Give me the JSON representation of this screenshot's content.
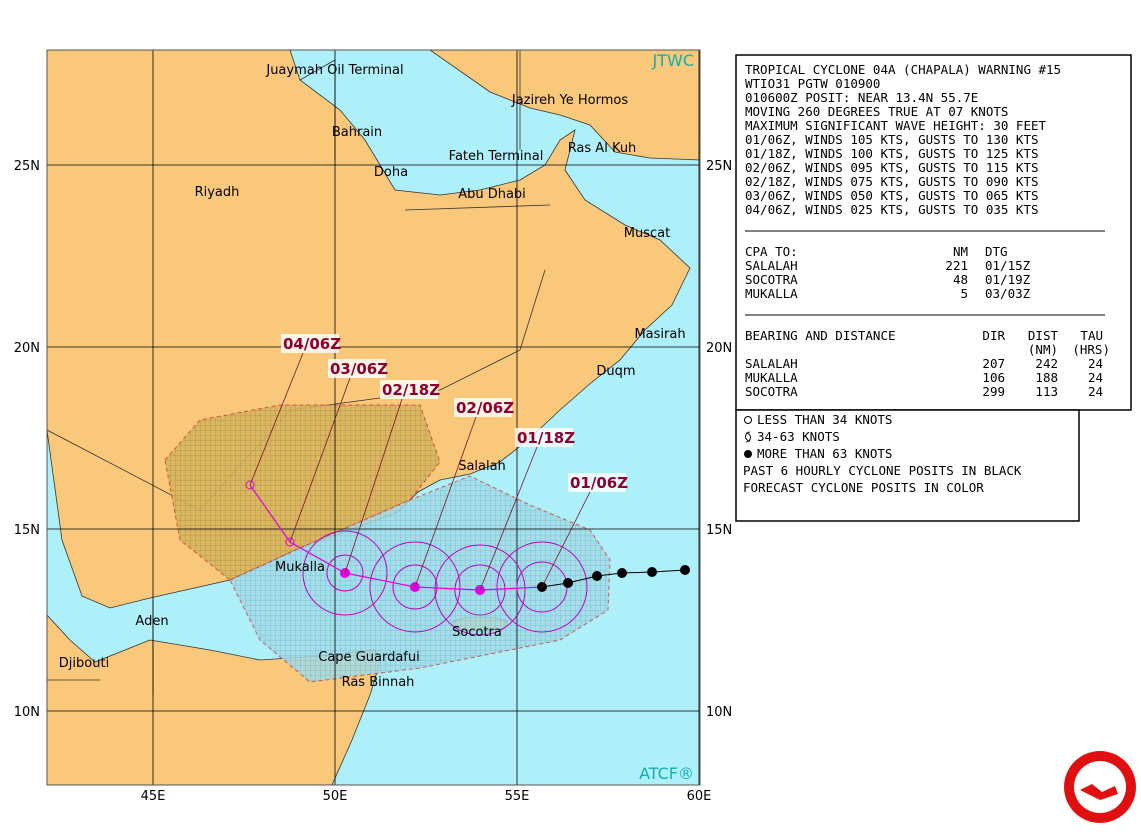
{
  "map": {
    "credit_top": "JTWC",
    "credit_bottom": "ATCF®",
    "lat_labels": [
      "25N",
      "20N",
      "15N",
      "10N"
    ],
    "lon_labels": [
      "45E",
      "50E",
      "55E",
      "60E"
    ],
    "places": [
      "Juaymah Oil Terminal",
      "Jazireh Ye Hormos",
      "Bahrain",
      "Fateh Terminal",
      "Ras Al Kuh",
      "Doha",
      "Abu Dhabi",
      "Riyadh",
      "Muscat",
      "Masirah",
      "Duqm",
      "Salalah",
      "Mukalla",
      "Aden",
      "Socotra",
      "Cape Guardafui",
      "Djibouti",
      "Ras Binnah"
    ],
    "forecast_labels": [
      "04/06Z",
      "03/06Z",
      "02/18Z",
      "02/06Z",
      "01/18Z",
      "01/06Z"
    ]
  },
  "warning": {
    "lines": [
      "TROPICAL CYCLONE 04A (CHAPALA) WARNING #15",
      "WTIO31 PGTW 010900",
      "010600Z POSIT: NEAR 13.4N 55.7E",
      "MOVING 260 DEGREES TRUE AT 07 KNOTS",
      "MAXIMUM SIGNIFICANT WAVE HEIGHT: 30 FEET",
      "01/06Z, WINDS 105 KTS, GUSTS TO 130 KTS",
      "01/18Z, WINDS 100 KTS, GUSTS TO 125 KTS",
      "02/06Z, WINDS 095 KTS, GUSTS TO 115 KTS",
      "02/18Z, WINDS 075 KTS, GUSTS TO 090 KTS",
      "03/06Z, WINDS 050 KTS, GUSTS TO 065 KTS",
      "04/06Z, WINDS 025 KTS, GUSTS TO 035 KTS"
    ],
    "cpa": {
      "header": [
        "CPA TO:",
        "NM",
        "DTG"
      ],
      "rows": [
        [
          "SALALAH",
          "221",
          "01/15Z"
        ],
        [
          "SOCOTRA",
          "48",
          "01/19Z"
        ],
        [
          "MUKALLA",
          "5",
          "03/03Z"
        ]
      ]
    },
    "bearing": {
      "header": [
        "BEARING AND DISTANCE",
        "DIR",
        "DIST",
        "TAU"
      ],
      "subheader": [
        "(NM)",
        "(HRS)"
      ],
      "rows": [
        [
          "SALALAH",
          "207",
          "242",
          "24"
        ],
        [
          "MUKALLA",
          "106",
          "188",
          "24"
        ],
        [
          "SOCOTRA",
          "299",
          "113",
          "24"
        ]
      ]
    }
  },
  "legend": [
    "LESS THAN 34 KNOTS",
    "34-63 KNOTS",
    "MORE THAN 63 KNOTS",
    "PAST 6 HOURLY CYCLONE POSITS IN BLACK",
    "FORECAST CYCLONE POSITS IN COLOR"
  ]
}
